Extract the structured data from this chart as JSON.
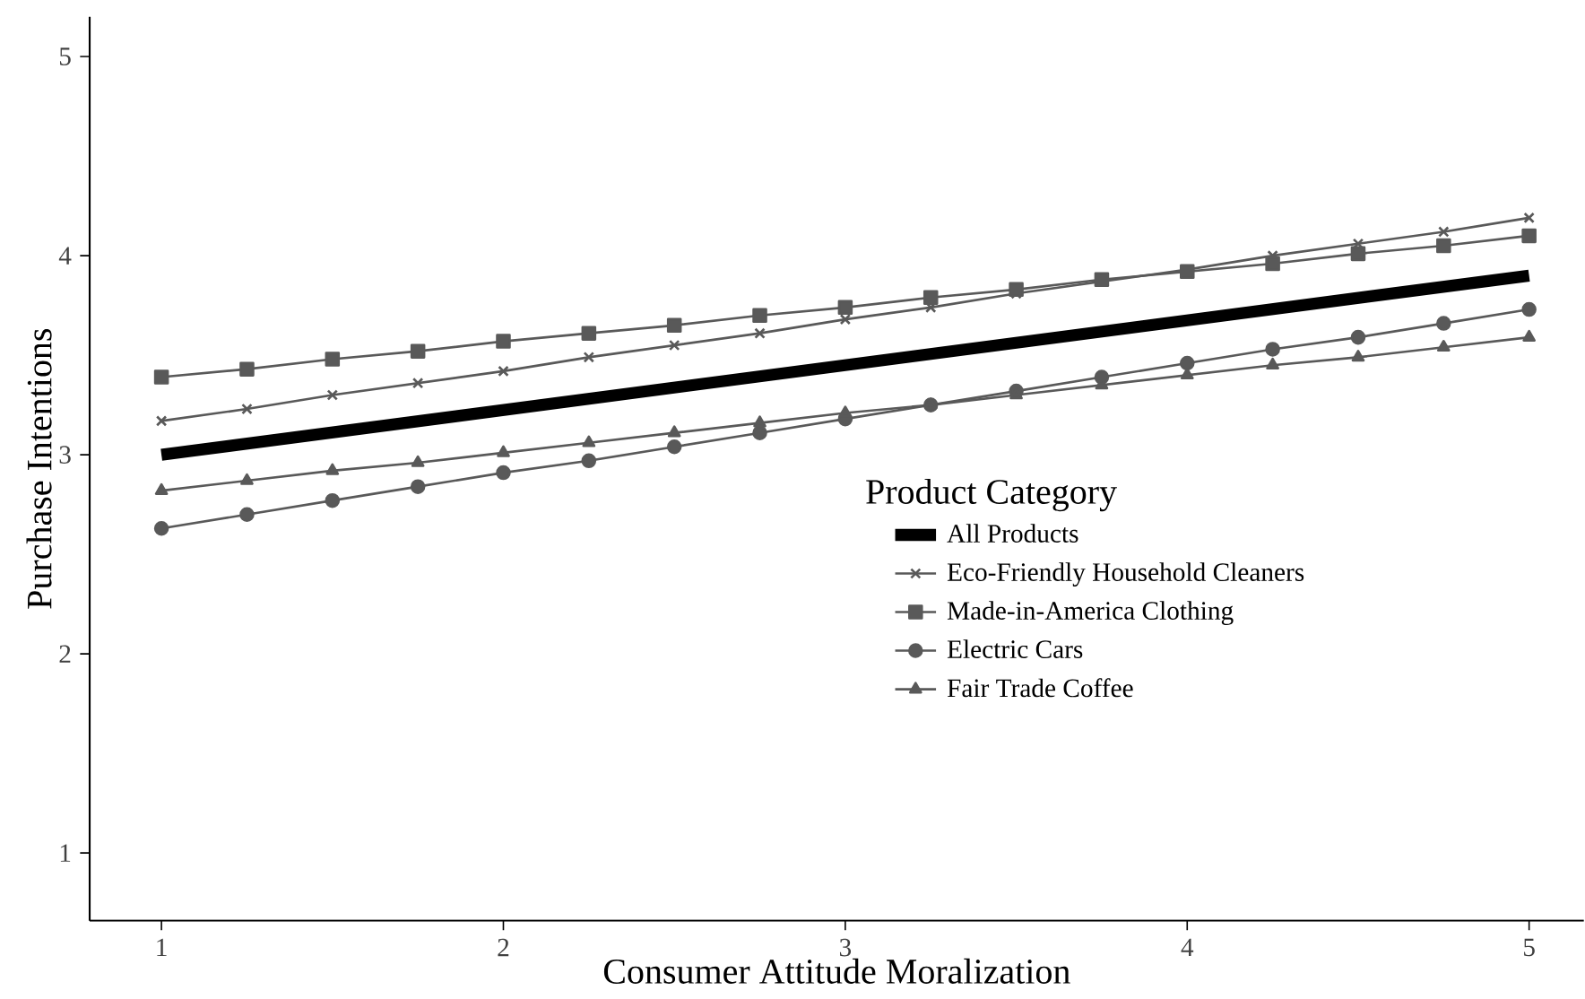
{
  "chart_data": {
    "type": "line",
    "xlabel": "Consumer Attitude Moralization",
    "ylabel": "Purchase Intentions",
    "legend_title": "Product Category",
    "xlim": [
      0.79,
      5.16
    ],
    "ylim": [
      0.66,
      5.2
    ],
    "xticks": [
      1,
      2,
      3,
      4,
      5
    ],
    "yticks": [
      1,
      2,
      3,
      4,
      5
    ],
    "grid": false,
    "legend": "right",
    "x": [
      1,
      1.25,
      1.5,
      1.75,
      2,
      2.25,
      2.5,
      2.75,
      3,
      3.25,
      3.5,
      3.75,
      4,
      4.25,
      4.5,
      4.75,
      5
    ],
    "series": [
      {
        "name": "All Products",
        "color": "#000000",
        "marker": "none",
        "x": [
          1,
          5
        ],
        "values": [
          3.0,
          3.9
        ]
      },
      {
        "name": "Eco-Friendly Household Cleaners",
        "color": "#595959",
        "marker": "cross",
        "values": [
          3.17,
          3.23,
          3.3,
          3.36,
          3.42,
          3.49,
          3.55,
          3.61,
          3.68,
          3.74,
          3.81,
          3.87,
          3.93,
          4.0,
          4.06,
          4.12,
          4.19
        ]
      },
      {
        "name": "Made-in-America Clothing",
        "color": "#595959",
        "marker": "square",
        "values": [
          3.39,
          3.43,
          3.48,
          3.52,
          3.57,
          3.61,
          3.65,
          3.7,
          3.74,
          3.79,
          3.83,
          3.88,
          3.92,
          3.96,
          4.01,
          4.05,
          4.1
        ]
      },
      {
        "name": "Electric Cars",
        "color": "#595959",
        "marker": "circle",
        "values": [
          2.63,
          2.7,
          2.77,
          2.84,
          2.91,
          2.97,
          3.04,
          3.11,
          3.18,
          3.25,
          3.32,
          3.39,
          3.46,
          3.53,
          3.59,
          3.66,
          3.73
        ]
      },
      {
        "name": "Fair Trade Coffee",
        "color": "#595959",
        "marker": "triangle",
        "values": [
          2.82,
          2.87,
          2.92,
          2.96,
          3.01,
          3.06,
          3.11,
          3.16,
          3.21,
          3.25,
          3.3,
          3.35,
          3.4,
          3.45,
          3.49,
          3.54,
          3.59
        ]
      }
    ]
  }
}
